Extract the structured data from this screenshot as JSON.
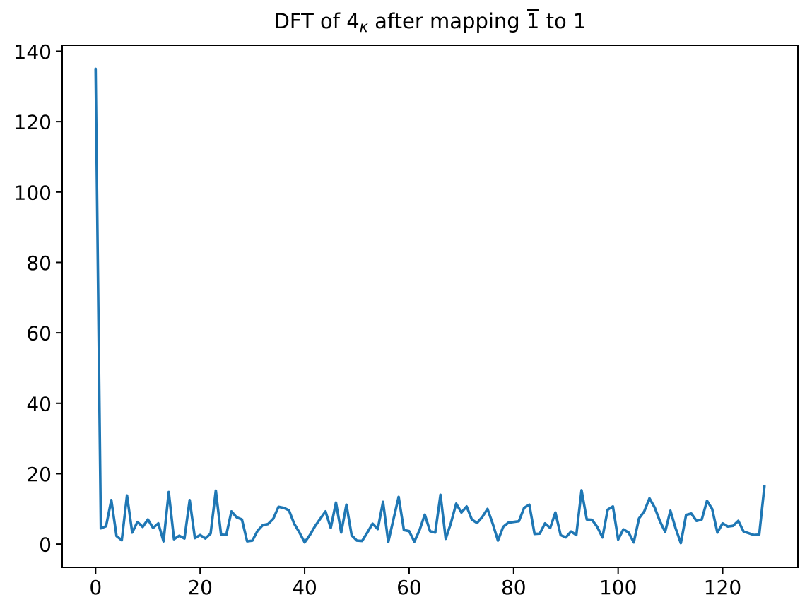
{
  "figure": {
    "background_color": "#ffffff",
    "title": {
      "part1": "DFT of 4",
      "kappa_subscript": "κ",
      "part2": " after mapping ",
      "barred_one": "1",
      "part3": " to 1",
      "full_text": "DFT of 4κ after mapping 1̄ to 1"
    }
  },
  "chart_data": {
    "type": "line",
    "title": "DFT of 4κ after mapping 1̄ to 1",
    "xlabel": "",
    "ylabel": "",
    "x": [
      0,
      1,
      2,
      3,
      4,
      5,
      6,
      7,
      8,
      9,
      10,
      11,
      12,
      13,
      14,
      15,
      16,
      17,
      18,
      19,
      20,
      21,
      22,
      23,
      24,
      25,
      26,
      27,
      28,
      29,
      30,
      31,
      32,
      33,
      34,
      35,
      36,
      37,
      38,
      39,
      40,
      41,
      42,
      43,
      44,
      45,
      46,
      47,
      48,
      49,
      50,
      51,
      52,
      53,
      54,
      55,
      56,
      57,
      58,
      59,
      60,
      61,
      62,
      63,
      64,
      65,
      66,
      67,
      68,
      69,
      70,
      71,
      72,
      73,
      74,
      75,
      76,
      77,
      78,
      79,
      80,
      81,
      82,
      83,
      84,
      85,
      86,
      87,
      88,
      89,
      90,
      91,
      92,
      93,
      94,
      95,
      96,
      97,
      98,
      99,
      100,
      101,
      102,
      103,
      104,
      105,
      106,
      107,
      108,
      109,
      110,
      111,
      112,
      113,
      114,
      115,
      116,
      117,
      118,
      119,
      120,
      121,
      122,
      123,
      124,
      125,
      126,
      127,
      128
    ],
    "values": [
      135.0,
      4.5,
      5.1,
      12.5,
      2.3,
      1.1,
      13.8,
      3.3,
      6.3,
      4.9,
      7.0,
      4.6,
      5.9,
      0.8,
      14.8,
      1.4,
      2.4,
      1.6,
      12.5,
      1.7,
      2.6,
      1.6,
      3.0,
      15.2,
      2.7,
      2.6,
      9.3,
      7.6,
      7.0,
      0.8,
      1.0,
      3.8,
      5.4,
      5.7,
      7.2,
      10.6,
      10.3,
      9.6,
      5.8,
      3.3,
      0.5,
      2.6,
      5.1,
      7.2,
      9.3,
      4.6,
      11.8,
      3.3,
      11.2,
      2.5,
      1.0,
      0.9,
      3.3,
      5.8,
      4.3,
      12.0,
      0.6,
      7.0,
      13.4,
      4.0,
      3.7,
      0.7,
      4.0,
      8.4,
      3.7,
      3.3,
      14.0,
      1.5,
      6.0,
      11.5,
      9.0,
      10.7,
      7.0,
      6.0,
      7.7,
      10.0,
      5.8,
      1.0,
      4.9,
      6.1,
      6.3,
      6.5,
      10.3,
      11.2,
      2.9,
      3.0,
      5.9,
      4.6,
      9.0,
      2.6,
      1.9,
      3.6,
      2.6,
      15.3,
      7.0,
      6.9,
      4.9,
      1.9,
      9.8,
      10.7,
      1.3,
      4.2,
      3.3,
      0.5,
      7.3,
      9.3,
      13.0,
      10.4,
      6.5,
      3.5,
      9.5,
      4.5,
      0.3,
      8.3,
      8.7,
      6.6,
      7.0,
      12.3,
      10.0,
      3.3,
      5.9,
      5.0,
      5.2,
      6.6,
      3.6,
      3.1,
      2.6,
      2.7,
      16.5
    ],
    "xlim": [
      -6.4,
      134.4
    ],
    "ylim": [
      -6.6,
      141.7
    ],
    "xticks": [
      0,
      20,
      40,
      60,
      80,
      100,
      120
    ],
    "yticks": [
      0,
      20,
      40,
      60,
      80,
      100,
      120,
      140
    ],
    "grid": false,
    "legend": "none",
    "line_color": "#1f77b4",
    "axis_color": "#000000",
    "background_color": "#ffffff"
  }
}
